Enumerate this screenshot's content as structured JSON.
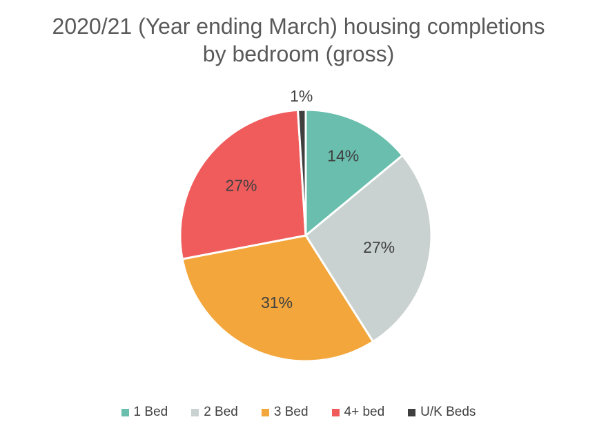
{
  "chart_data": {
    "type": "pie",
    "title": "2020/21 (Year ending March) housing completions by bedroom (gross)",
    "title_lines": [
      "2020/21 (Year ending March) housing completions",
      "by bedroom (gross)"
    ],
    "categories": [
      "1 Bed",
      "2 Bed",
      "3 Bed",
      "4+ bed",
      "U/K Beds"
    ],
    "values": [
      14,
      27,
      31,
      27,
      1
    ],
    "data_labels": [
      "14%",
      "27%",
      "31%",
      "27%",
      "1%"
    ],
    "colors": [
      "#69BEAD",
      "#C9D2D0",
      "#F2A63B",
      "#F05B5B",
      "#3F3F3F"
    ],
    "start_angle_deg": 0,
    "direction": "clockwise",
    "legend_position": "bottom",
    "label_radius_ratio": [
      0.7,
      0.59,
      0.58,
      0.65,
      1.11
    ],
    "label_color": "#404040",
    "title_color": "#595959",
    "slice_border_color": "#FFFFFF",
    "background": "#FFFFFF"
  }
}
